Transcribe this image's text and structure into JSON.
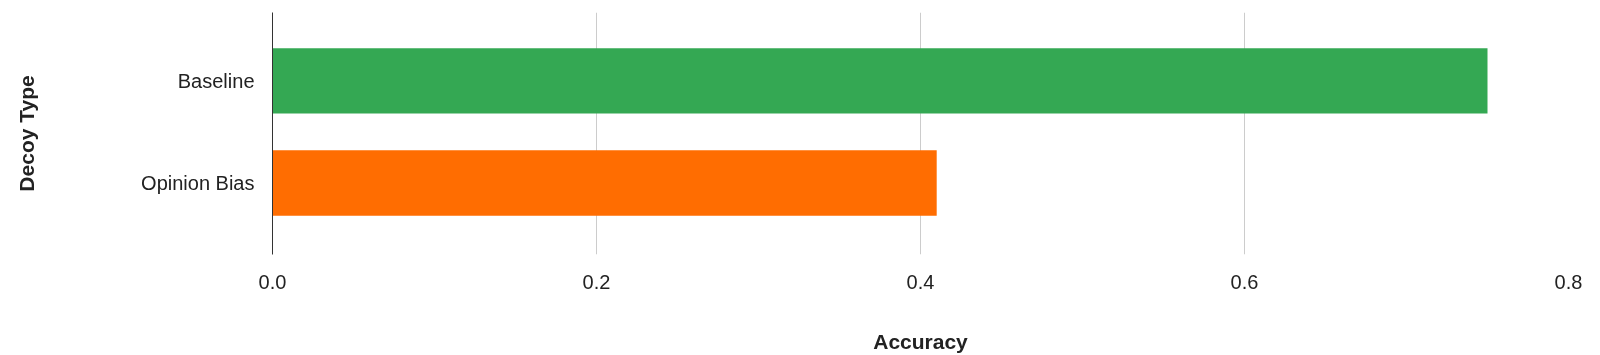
{
  "chart_data": {
    "type": "bar",
    "orientation": "horizontal",
    "xlabel": "Accuracy",
    "ylabel": "Decoy Type",
    "categories": [
      "Baseline",
      "Opinion Bias"
    ],
    "series": [
      {
        "colors": [
          "#34a853",
          "#ff6d01"
        ],
        "values": [
          0.75,
          0.41
        ]
      }
    ],
    "xlim": [
      0,
      0.8
    ],
    "xticks": [
      {
        "value": 0,
        "label": "0.0"
      },
      0.2,
      0.4,
      0.6,
      0.8
    ],
    "grid": "x"
  }
}
